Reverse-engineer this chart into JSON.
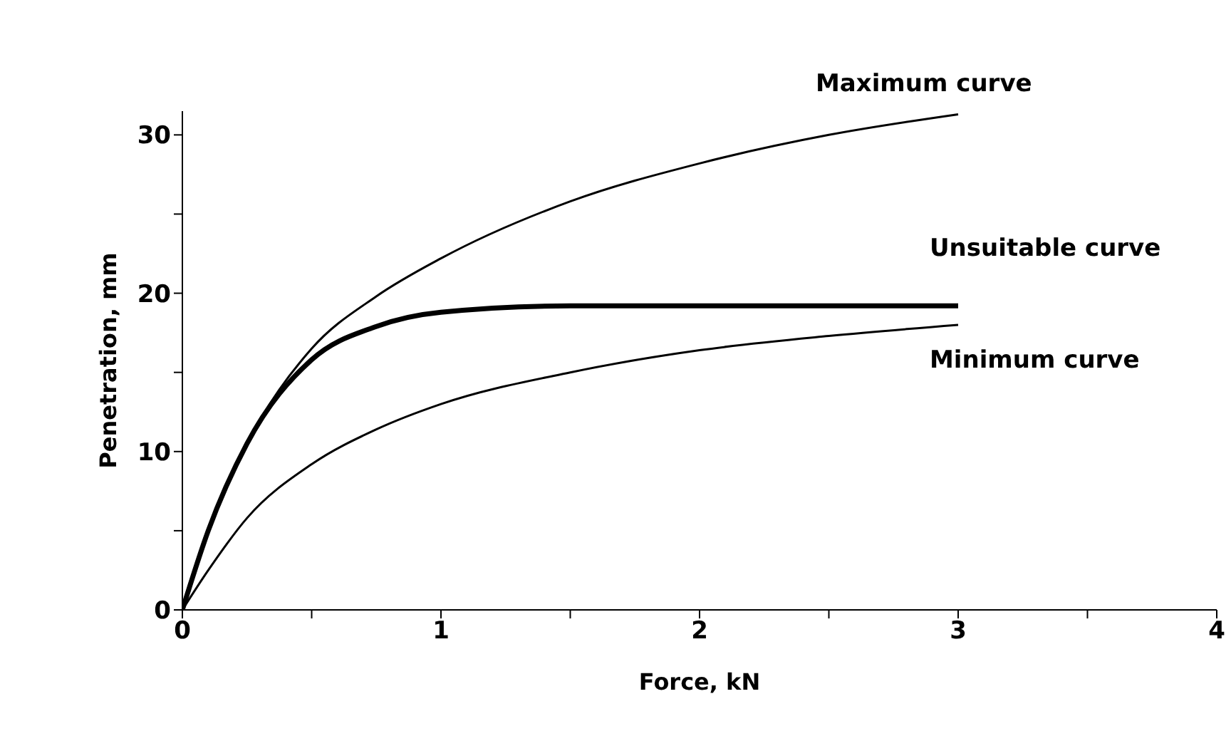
{
  "chart_data": {
    "type": "line",
    "xlabel": "Force, kN",
    "ylabel": "Penetration, mm",
    "x": [
      0,
      0.1,
      0.25,
      0.5,
      0.75,
      1,
      1.5,
      2,
      2.5,
      3
    ],
    "series": [
      {
        "name": "Maximum curve",
        "color": "#000000",
        "values": [
          0,
          5,
          10.5,
          16.5,
          19.8,
          22.2,
          25.8,
          28.2,
          30,
          31.3
        ]
      },
      {
        "name": "Unsuitable curve",
        "color": "#000000",
        "values": [
          0,
          5,
          10.5,
          15.8,
          17.9,
          18.8,
          19.2,
          19.2,
          19.2,
          19.2
        ]
      },
      {
        "name": "Minimum curve",
        "color": "#000000",
        "values": [
          0,
          2.5,
          5.8,
          9.2,
          11.4,
          13,
          15,
          16.4,
          17.3,
          18
        ]
      }
    ],
    "xlim": [
      0,
      4
    ],
    "ylim": [
      0,
      31.5
    ],
    "xticks": [
      0,
      {
        "value": 0.5,
        "label": null
      },
      1,
      {
        "value": 1.5,
        "label": null
      },
      2,
      {
        "value": 2.5,
        "label": null
      },
      3,
      {
        "value": 3.5,
        "label": null
      },
      4
    ],
    "yticks": [
      0,
      {
        "value": 5,
        "label": null
      },
      10,
      {
        "value": 15,
        "label": null
      },
      20,
      {
        "value": 25,
        "label": null
      },
      30
    ],
    "grid": false,
    "legend": false,
    "marker": "none",
    "line_style": "solid"
  }
}
